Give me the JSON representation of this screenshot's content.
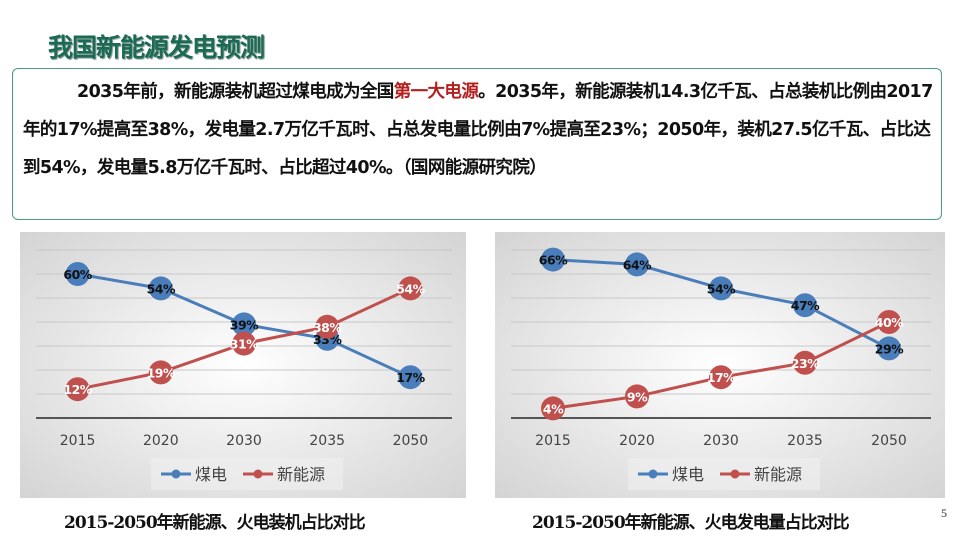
{
  "title": "我国新能源发电预测",
  "summary": {
    "part1": "2035年前，新能源装机超过煤电成为全国",
    "highlight": "第一大电源",
    "part2": "。2035年，新能源装机14.3亿千瓦、占总装机比例由2017年的17%提高至38%，发电量2.7万亿千瓦时、占总发电量比例由7%提高至23%；2050年，装机27.5亿千瓦、占比达到54%，发电量5.8万亿千瓦时、占比超过40%。（国网能源研究院）",
    "highlight_color": "#b3201e"
  },
  "chart_data": [
    {
      "type": "line",
      "caption": "2015-2050年新能源、火电装机占比对比",
      "categories": [
        "2015",
        "2020",
        "2030",
        "2035",
        "2050"
      ],
      "ylim": [
        0,
        70
      ],
      "grid": true,
      "legend": "bottom",
      "series": [
        {
          "name": "煤电",
          "color": "#4a7ebb",
          "values": [
            60,
            54,
            39,
            33,
            17
          ],
          "labels": [
            "60%",
            "54%",
            "39%",
            "33%",
            "17%"
          ]
        },
        {
          "name": "新能源",
          "color": "#c0504d",
          "values": [
            12,
            19,
            31,
            38,
            54
          ],
          "labels": [
            "12%",
            "19%",
            "31%",
            "38%",
            "54%"
          ]
        }
      ]
    },
    {
      "type": "line",
      "caption": "2015-2050年新能源、火电发电量占比对比",
      "categories": [
        "2015",
        "2020",
        "2030",
        "2035",
        "2050"
      ],
      "ylim": [
        0,
        70
      ],
      "grid": true,
      "legend": "bottom",
      "series": [
        {
          "name": "煤电",
          "color": "#4a7ebb",
          "values": [
            66,
            64,
            54,
            47,
            29
          ],
          "labels": [
            "66%",
            "64%",
            "54%",
            "47%",
            "29%"
          ]
        },
        {
          "name": "新能源",
          "color": "#c0504d",
          "values": [
            4,
            9,
            17,
            23,
            40
          ],
          "labels": [
            "4%",
            "9%",
            "17%",
            "23%",
            "40%"
          ]
        }
      ]
    }
  ],
  "page_number": "5"
}
